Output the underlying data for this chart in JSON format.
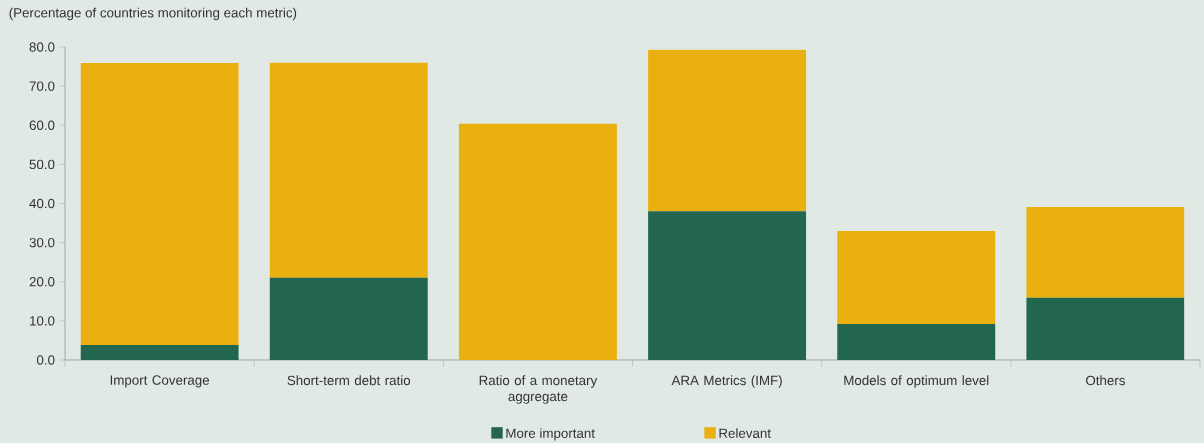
{
  "chart_data": {
    "type": "bar",
    "stacked": true,
    "annotations": [
      "(Percentage of countries monitoring each metric)"
    ],
    "categories": [
      "Import Coverage",
      "Short-term debt ratio",
      "Ratio of a monetary aggregate",
      "ARA Metrics (IMF)",
      "Models of optimum level",
      "Others"
    ],
    "series": [
      {
        "name": "More important",
        "color": "#236650",
        "values": [
          3.8,
          21.0,
          0,
          38.0,
          9.2,
          15.9
        ]
      },
      {
        "name": "Relevant",
        "color": "#e9b010",
        "values": [
          72.1,
          55.0,
          60.4,
          41.3,
          23.8,
          23.2
        ]
      }
    ],
    "ylim": [
      0,
      80
    ],
    "yticks": [
      {
        "value": 0,
        "label": "0.0"
      },
      {
        "value": 10,
        "label": "10.0"
      },
      {
        "value": 20,
        "label": "20.0"
      },
      {
        "value": 30,
        "label": "30.0"
      },
      {
        "value": 40,
        "label": "40.0"
      },
      {
        "value": 50,
        "label": "50.0"
      },
      {
        "value": 60,
        "label": "60.0"
      },
      {
        "value": 70,
        "label": "70.0"
      },
      {
        "value": 80,
        "label": "80.0"
      }
    ],
    "grid": false,
    "legend": "bottom"
  }
}
